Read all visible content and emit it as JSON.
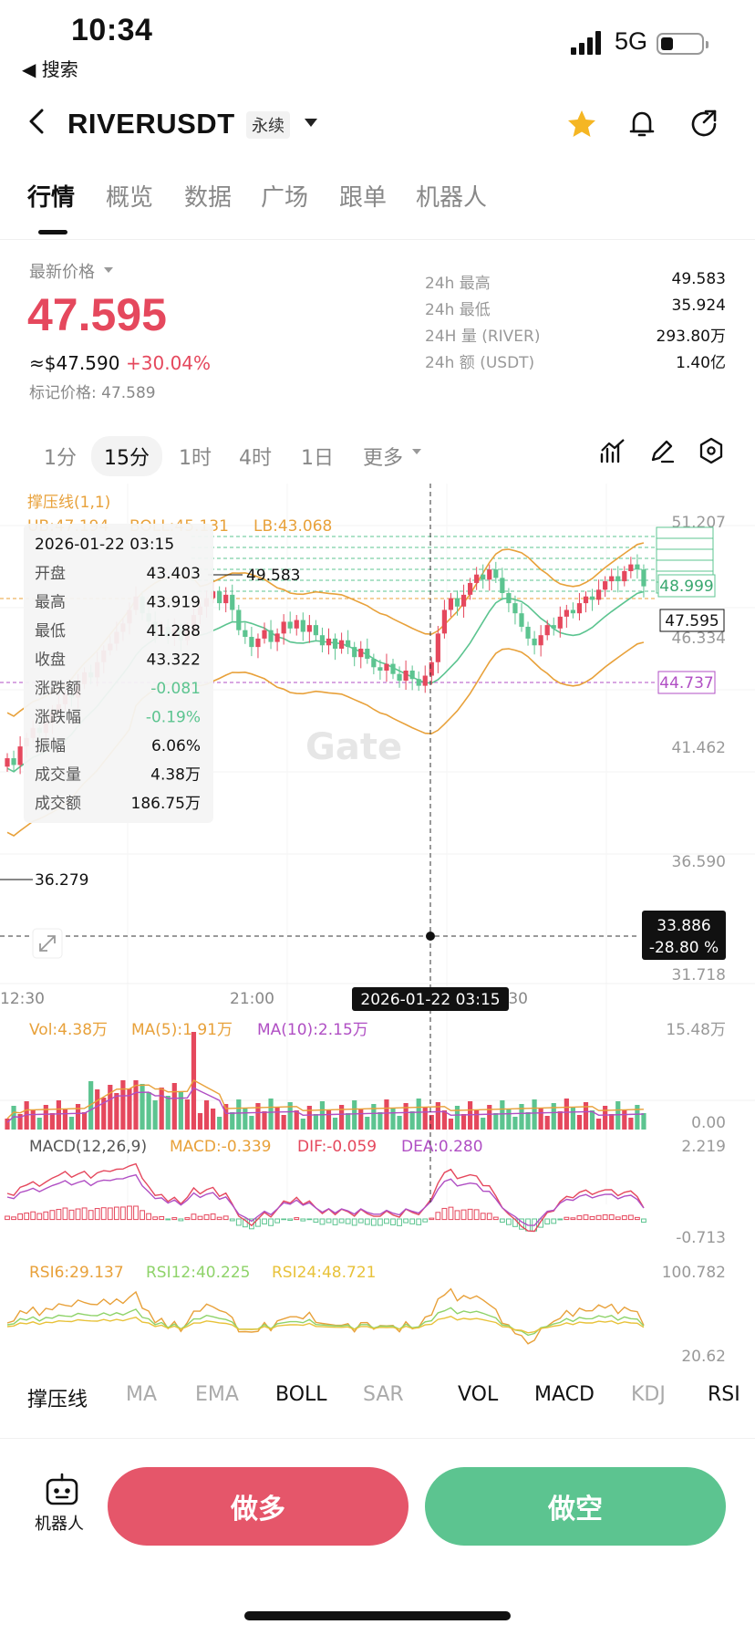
{
  "status": {
    "time": "10:34",
    "back_app": "◀ 搜索",
    "network": "5G",
    "battery_pct": 0.3
  },
  "header": {
    "title": "RIVERUSDT",
    "contract_type": "永续"
  },
  "tabs": [
    "行情",
    "概览",
    "数据",
    "广场",
    "跟单",
    "机器人"
  ],
  "price": {
    "label": "最新价格",
    "last": "47.595",
    "usd": "≈$47.590",
    "change": "+30.04%",
    "mark": "标记价格: 47.589"
  },
  "stats": [
    {
      "label": "24h  最高",
      "value": "49.583"
    },
    {
      "label": "24h  最低",
      "value": "35.924"
    },
    {
      "label": "24H  量 (RIVER)",
      "value": "293.80万"
    },
    {
      "label": "24h  额 (USDT)",
      "value": "1.40亿"
    }
  ],
  "intervals": [
    "1分",
    "15分",
    "1时",
    "4时",
    "1日",
    "更多"
  ],
  "chart": {
    "overlay_title": "撑压线(1,1)",
    "boll_label": {
      "ub": "UB:47.194",
      "boll": "BOLL:45.131",
      "lb": "LB:43.068"
    },
    "price_axis": [
      "51.207",
      "46.334",
      "41.462",
      "36.590",
      "31.718"
    ],
    "tag_green": "48.999",
    "tag_current": "47.595",
    "tag_purple": "44.737",
    "high_marker": "49.583",
    "low_marker": "36.279",
    "cursor_price": "33.886",
    "cursor_pct": "-28.80 %",
    "time_axis": [
      "12:30",
      "21:00",
      "06:30"
    ],
    "cursor_time": "2026-01-22 03:15",
    "watermark": "Gate",
    "tooltip": {
      "time": "2026-01-22 03:15",
      "rows": [
        {
          "label": "开盘",
          "value": "43.403"
        },
        {
          "label": "最高",
          "value": "43.919"
        },
        {
          "label": "最低",
          "value": "41.288"
        },
        {
          "label": "收盘",
          "value": "43.322"
        },
        {
          "label": "涨跌额",
          "value": "-0.081"
        },
        {
          "label": "涨跌幅",
          "value": "-0.19%"
        },
        {
          "label": "振幅",
          "value": "6.06%"
        },
        {
          "label": "成交量",
          "value": "4.38万"
        },
        {
          "label": "成交额",
          "value": "186.75万"
        }
      ]
    },
    "vol": {
      "label": "Vol:4.38万",
      "ma5": "MA(5):1.91万",
      "ma10": "MA(10):2.15万",
      "max": "15.48万",
      "min": "0.00"
    },
    "macd": {
      "label": "MACD(12,26,9)",
      "macd": "MACD:-0.339",
      "dif": "DIF:-0.059",
      "dea": "DEA:0.280",
      "max": "2.219",
      "min": "-0.713"
    },
    "rsi": {
      "rsi6": "RSI6:29.137",
      "rsi12": "RSI12:40.225",
      "rsi24": "RSI24:48.721",
      "max": "100.782",
      "min": "20.62"
    }
  },
  "indicators": [
    "撑压线",
    "MA",
    "EMA",
    "BOLL",
    "SAR",
    "VOL",
    "MACD",
    "KDJ",
    "RSI"
  ],
  "actions": {
    "robot": "机器人",
    "long": "做多",
    "short": "做空"
  },
  "colors": {
    "up": "#e5485d",
    "down": "#5cc490",
    "ma_orange": "#e8a13a",
    "purple": "#b04fc4"
  }
}
